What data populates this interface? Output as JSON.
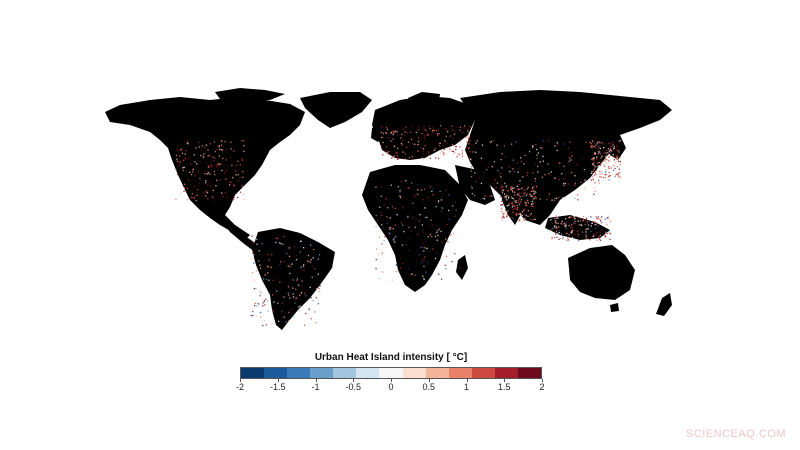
{
  "map": {
    "land_color": "#000000",
    "ocean_color": "#ffffff"
  },
  "legend": {
    "title": "Urban Heat Island intensity [ °C]",
    "min": -2,
    "max": 2,
    "tick_labels": [
      "-2",
      "-1.5",
      "-1",
      "-0.5",
      "0",
      "0.5",
      "1",
      "1.5",
      "2"
    ],
    "colors": [
      "#0b3a6e",
      "#1d5a9c",
      "#3a7ab8",
      "#6a9fcc",
      "#a3c6e0",
      "#d3e6f0",
      "#f6f6f6",
      "#fbe0d2",
      "#f4b59a",
      "#e8806a",
      "#cc4a40",
      "#a51d2d",
      "#6d0a1e"
    ]
  },
  "watermark": "SCIENCEAQ.COM"
}
